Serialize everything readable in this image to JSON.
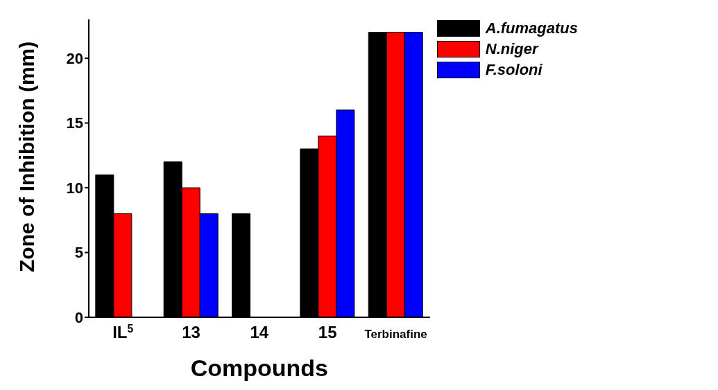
{
  "chart_data": {
    "type": "bar",
    "xlabel": "Compounds",
    "ylabel": "Zone of Inhibition (mm)",
    "categories": [
      "IL$^{5}$",
      "13",
      "14",
      "15",
      "Terbinafine"
    ],
    "series": [
      {
        "name": "A.fumagatus",
        "color": "#000000",
        "values": [
          11,
          12,
          8,
          13,
          22
        ]
      },
      {
        "name": "N.niger",
        "color": "#ff0000",
        "values": [
          8,
          10,
          null,
          14,
          22
        ]
      },
      {
        "name": "F.soloni",
        "color": "#0000ff",
        "values": [
          null,
          8,
          null,
          16,
          22
        ]
      }
    ],
    "ylim": [
      0,
      23
    ],
    "yticks": [
      0,
      5,
      10,
      15,
      20
    ],
    "grid": false,
    "legend": "top right"
  }
}
